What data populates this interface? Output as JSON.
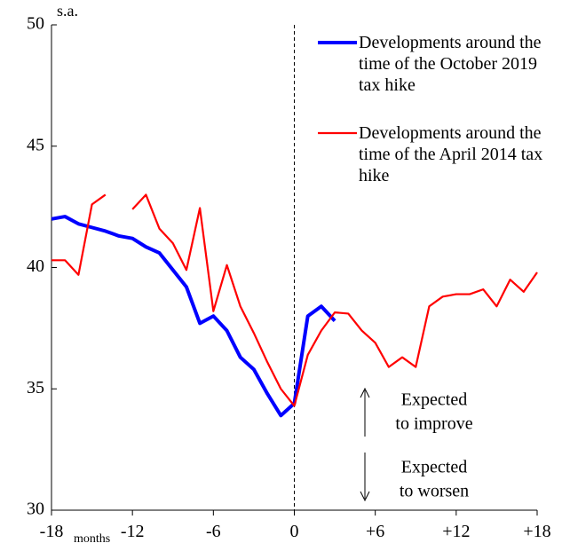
{
  "chart_data": {
    "type": "line",
    "y_unit": "s.a.",
    "x_unit": "months",
    "x": [
      -18,
      -17,
      -16,
      -15,
      -14,
      -13,
      -12,
      -11,
      -10,
      -9,
      -8,
      -7,
      -6,
      -5,
      -4,
      -3,
      -2,
      -1,
      0,
      1,
      2,
      3,
      4,
      5,
      6,
      7,
      8,
      9,
      10,
      11,
      12,
      13,
      14,
      15,
      16,
      17,
      18
    ],
    "series": [
      {
        "name": "Developments around the time of the October 2019 tax hike",
        "color": "#0000ff",
        "values": [
          42.0,
          42.1,
          41.8,
          41.65,
          41.5,
          41.3,
          41.2,
          40.85,
          40.6,
          39.9,
          39.2,
          37.7,
          38.0,
          37.4,
          36.3,
          35.8,
          34.8,
          33.9,
          34.4,
          38.0,
          38.4,
          37.8,
          null,
          null,
          null,
          null,
          null,
          null,
          null,
          null,
          null,
          null,
          null,
          null,
          null,
          null,
          null
        ]
      },
      {
        "name": "Developments around the time of the April 2014 tax hike",
        "color": "#ff0000",
        "values": [
          40.3,
          40.3,
          39.7,
          42.6,
          43.0,
          null,
          42.4,
          43.0,
          41.6,
          41.0,
          39.9,
          42.45,
          38.2,
          40.1,
          38.4,
          37.3,
          36.1,
          35.0,
          34.3,
          36.4,
          37.4,
          38.15,
          38.1,
          37.4,
          36.9,
          35.9,
          36.3,
          35.9,
          38.4,
          38.8,
          38.9,
          38.9,
          39.1,
          38.4,
          39.5,
          39.0,
          39.8
        ]
      }
    ],
    "xlim": [
      -18,
      18
    ],
    "xticks": [
      -18,
      -12,
      -6,
      0,
      {
        "value": 6,
        "label": "+6"
      },
      {
        "value": 12,
        "label": "+12"
      },
      {
        "value": 18,
        "label": "+18"
      }
    ],
    "ylim": [
      30,
      50
    ],
    "yticks": [
      30,
      35,
      40,
      45,
      50
    ],
    "vline": 0,
    "annotations": [
      [
        "Expected",
        "to improve"
      ],
      [
        "Expected",
        "to worsen"
      ]
    ]
  }
}
